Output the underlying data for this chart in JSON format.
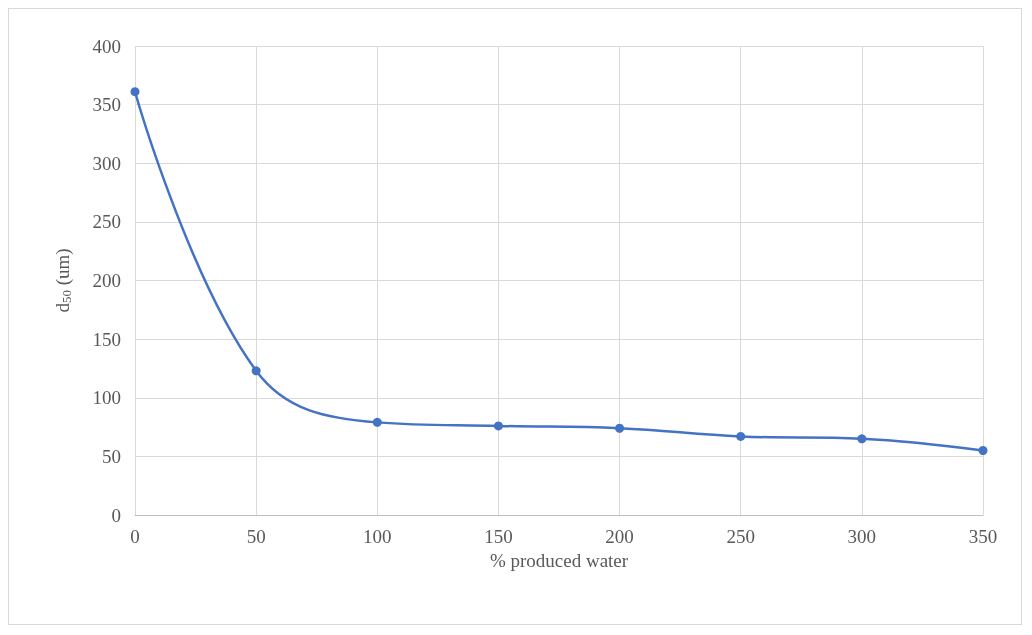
{
  "chart_data": {
    "type": "line",
    "xlabel": "% produced water",
    "ylabel": "d$_{50}$ (um)",
    "x": [
      0,
      50,
      100,
      150,
      200,
      250,
      300,
      350
    ],
    "series": [
      {
        "color": "#4472c4",
        "values": [
          361,
          123,
          79,
          76,
          74,
          67,
          65,
          55
        ]
      }
    ],
    "xlim": [
      0,
      350
    ],
    "xticks": [
      0,
      50,
      100,
      150,
      200,
      250,
      300,
      350
    ],
    "ylim": [
      0,
      400
    ],
    "yticks": [
      0,
      50,
      100,
      150,
      200,
      250,
      300,
      350,
      400
    ],
    "grid": true,
    "marker": "circle",
    "line_style": "solid"
  }
}
